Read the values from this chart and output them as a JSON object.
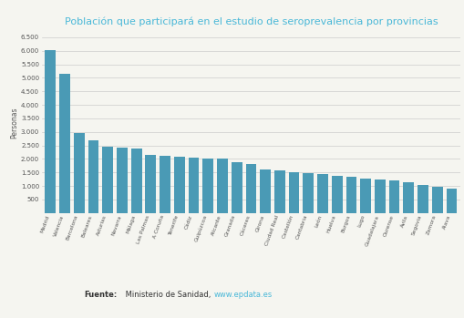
{
  "title": "Población que participará en el estudio de seroprevalencia por provincias",
  "ylabel": "Personas",
  "bar_color": "#4a9ab5",
  "background_color": "#f5f5f0",
  "grid_color": "#cccccc",
  "title_color": "#4ab8d8",
  "categories": [
    "Madrid",
    "Valencia",
    "Barcelona",
    "Baleares",
    "Asturias",
    "Navarra",
    "Málaga",
    "Las Palmas",
    "A Coruña",
    "Tenerife",
    "Cádiz",
    "Guipúzcoa",
    "Alicante",
    "Granada",
    "Cáceres",
    "Girona",
    "Ciudad Real",
    "Castellón",
    "Cantabria",
    "León",
    "Huelva",
    "Burgos",
    "Lugo",
    "Guadalajara",
    "Ourense",
    "Ávila",
    "Segovia",
    "Zamora",
    "Álava"
  ],
  "values": [
    6020,
    5150,
    2950,
    2700,
    2460,
    2420,
    2380,
    2150,
    2120,
    2070,
    2050,
    2000,
    2000,
    1870,
    1820,
    1620,
    1590,
    1510,
    1460,
    1430,
    1360,
    1340,
    1280,
    1250,
    1200,
    1150,
    1050,
    980,
    900
  ],
  "yticks": [
    500,
    1000,
    1500,
    2000,
    2500,
    3000,
    3500,
    4000,
    4500,
    5000,
    5500,
    6000,
    6500
  ],
  "legend_label": "Personas",
  "source_bold": "Fuente:",
  "source_normal": " Ministerio de Sanidad, ",
  "source_link": "www.epdata.es",
  "source_link_color": "#4ab8d8",
  "source_text_color": "#333333"
}
